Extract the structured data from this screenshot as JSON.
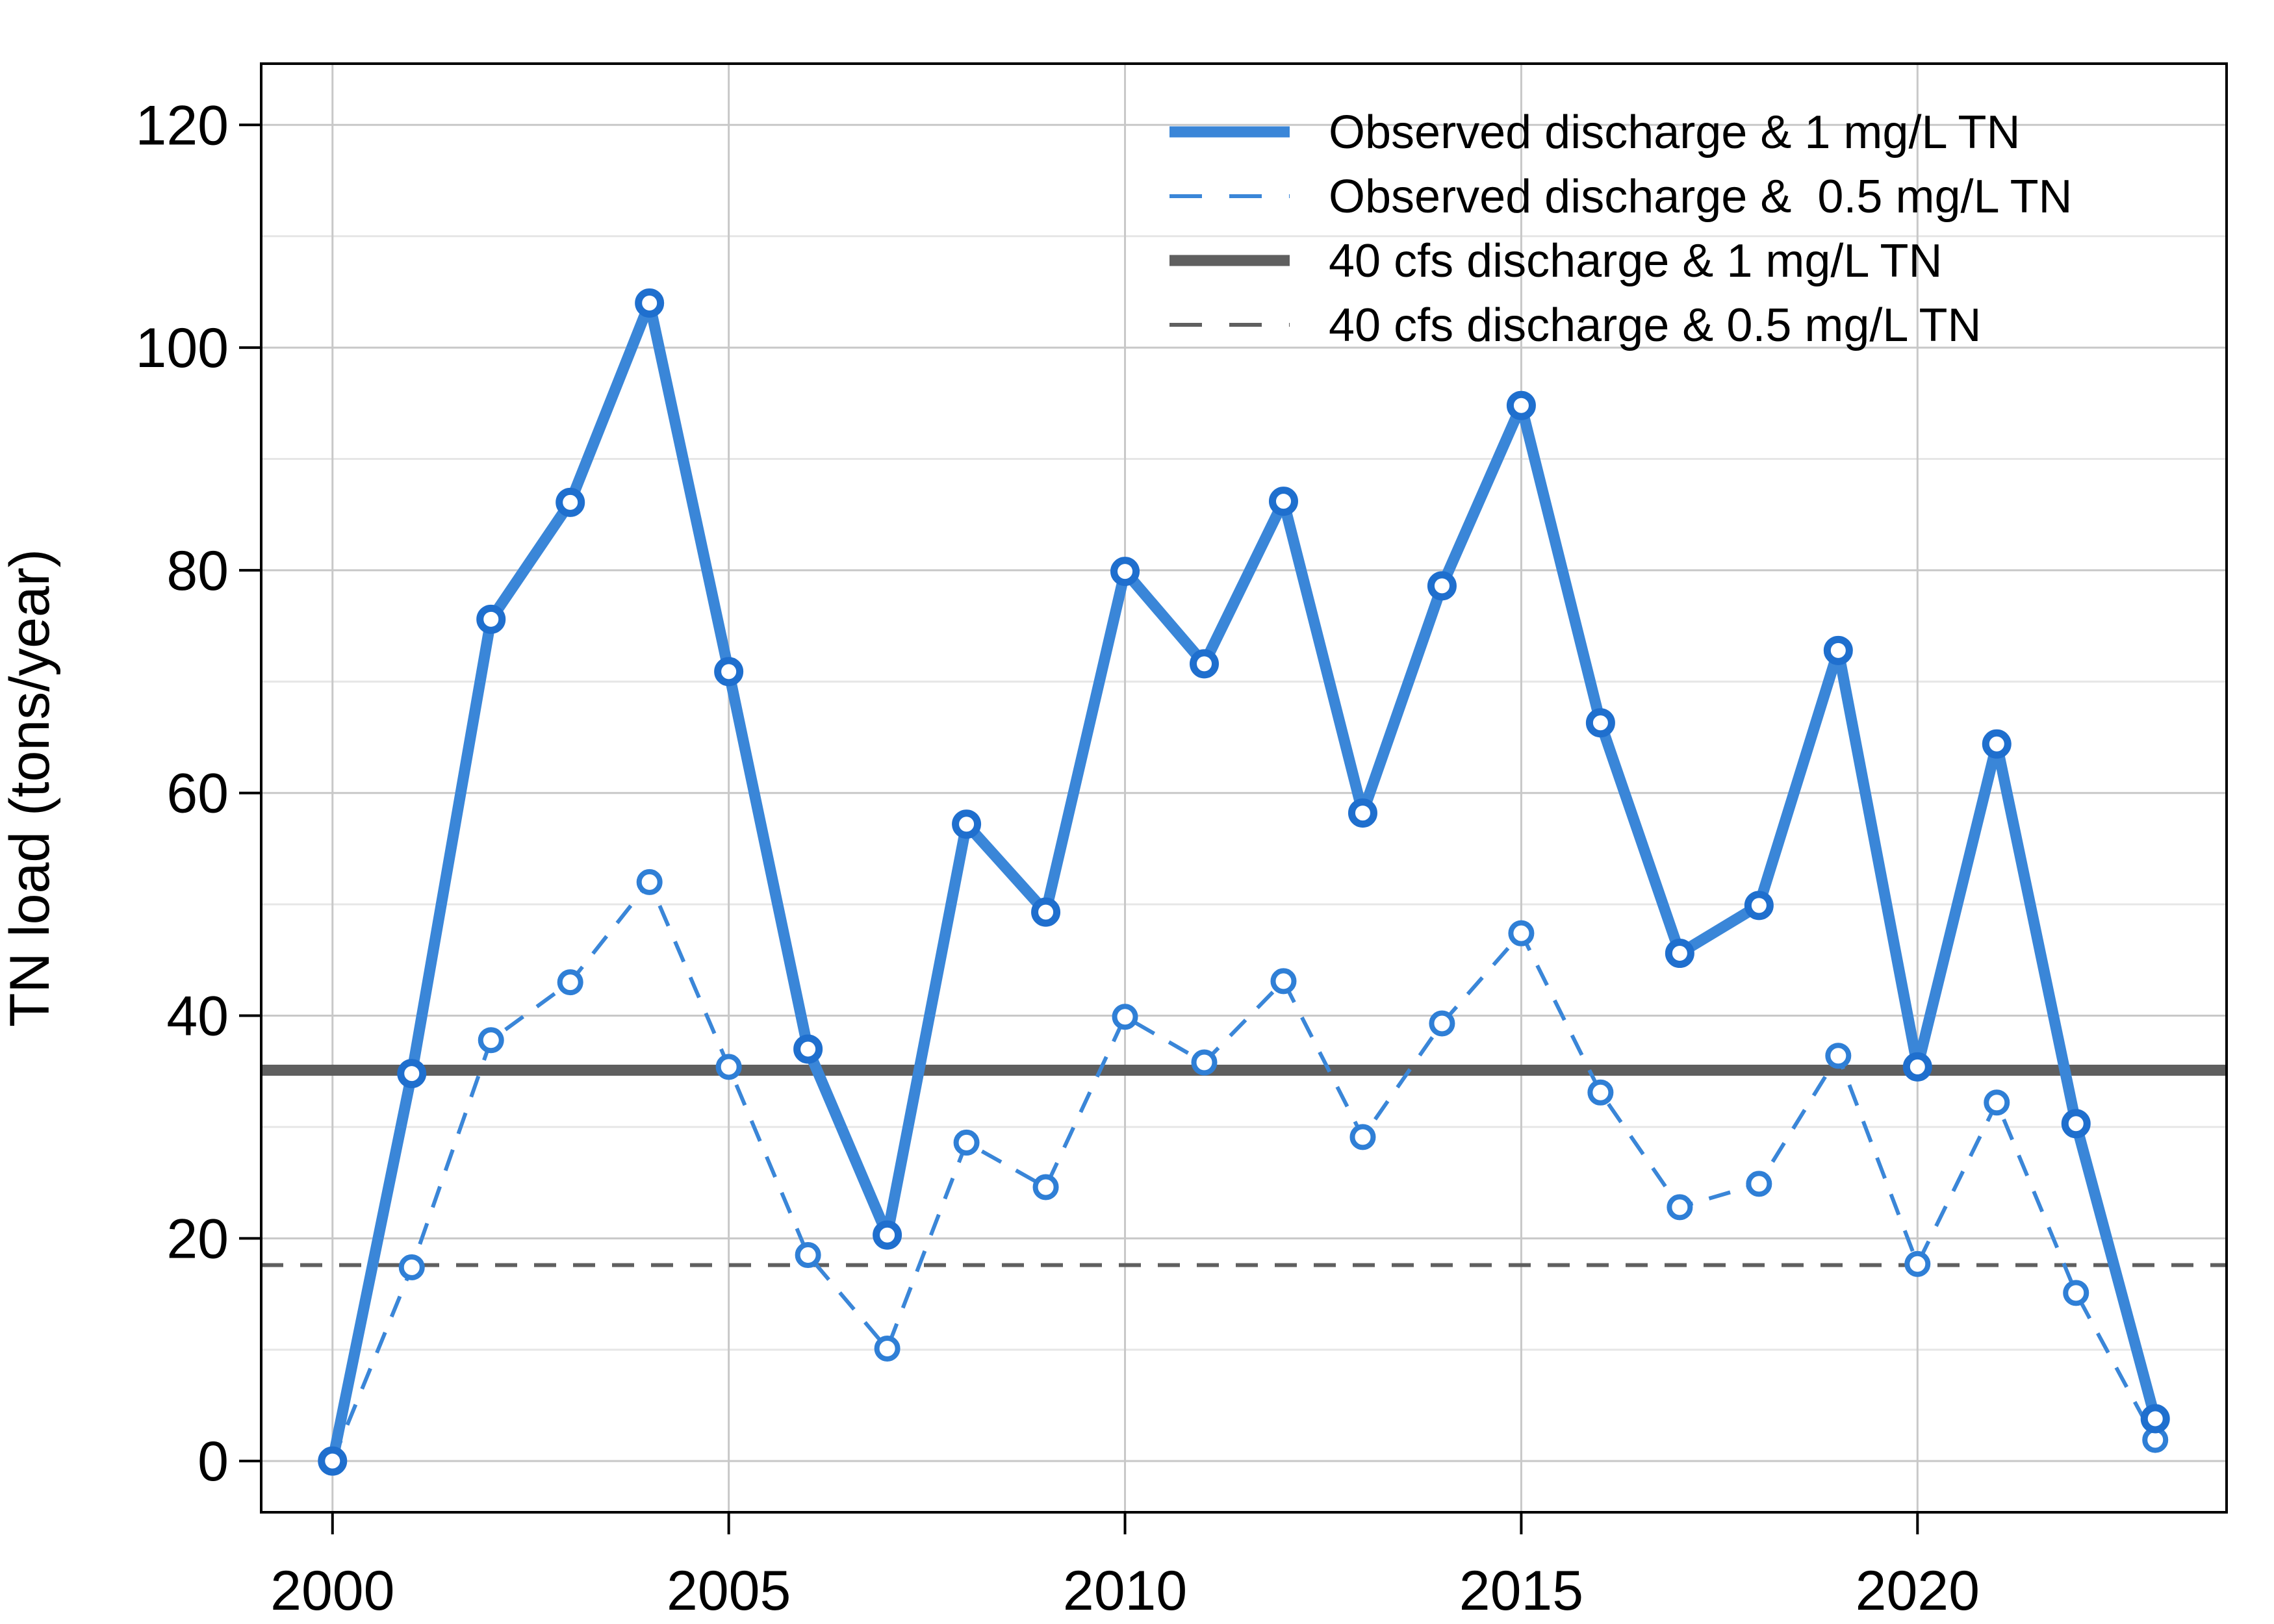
{
  "chart_data": {
    "type": "line",
    "title": "",
    "xlabel": "",
    "ylabel": "TN load (tons/year)",
    "xlim": [
      1999.1,
      2023.9
    ],
    "ylim": [
      -4.6,
      125.5
    ],
    "x_ticks": [
      2000,
      2005,
      2010,
      2015,
      2020
    ],
    "y_ticks": [
      0,
      20,
      40,
      60,
      80,
      100,
      120
    ],
    "y_minor_grid": [
      10,
      30,
      50,
      70,
      90,
      110
    ],
    "grid": true,
    "legend_position": "top-right",
    "x": [
      2000,
      2001,
      2002,
      2003,
      2004,
      2005,
      2006,
      2007,
      2008,
      2009,
      2010,
      2011,
      2012,
      2013,
      2014,
      2015,
      2016,
      2017,
      2018,
      2019,
      2020,
      2021,
      2022,
      2023
    ],
    "series": [
      {
        "name": "Observed discharge & 1 mg/L TN",
        "color": "#3a86d8",
        "style": "solid-thick",
        "markers": true,
        "values": [
          0,
          34.8,
          75.6,
          86.1,
          104.0,
          70.9,
          37.0,
          20.3,
          57.2,
          49.3,
          79.9,
          71.6,
          86.2,
          58.2,
          78.6,
          94.8,
          66.3,
          45.6,
          49.9,
          72.8,
          35.4,
          64.4,
          30.3,
          3.8
        ]
      },
      {
        "name": "Observed discharge &  0.5 mg/L TN",
        "color": "#3a86d8",
        "style": "dashed-thin",
        "markers": true,
        "values": [
          0,
          17.4,
          37.8,
          43.0,
          52.0,
          35.4,
          18.5,
          10.1,
          28.6,
          24.6,
          39.9,
          35.8,
          43.1,
          29.1,
          39.3,
          47.4,
          33.1,
          22.8,
          24.9,
          36.4,
          17.7,
          32.2,
          15.1,
          1.9
        ]
      },
      {
        "name": "40 cfs discharge & 1 mg/L TN",
        "color": "#5f5f5f",
        "style": "solid-thick",
        "markers": false,
        "constant": 35.1
      },
      {
        "name": "40 cfs discharge & 0.5 mg/L TN",
        "color": "#5f5f5f",
        "style": "dashed-thin",
        "markers": false,
        "constant": 17.6
      }
    ]
  }
}
